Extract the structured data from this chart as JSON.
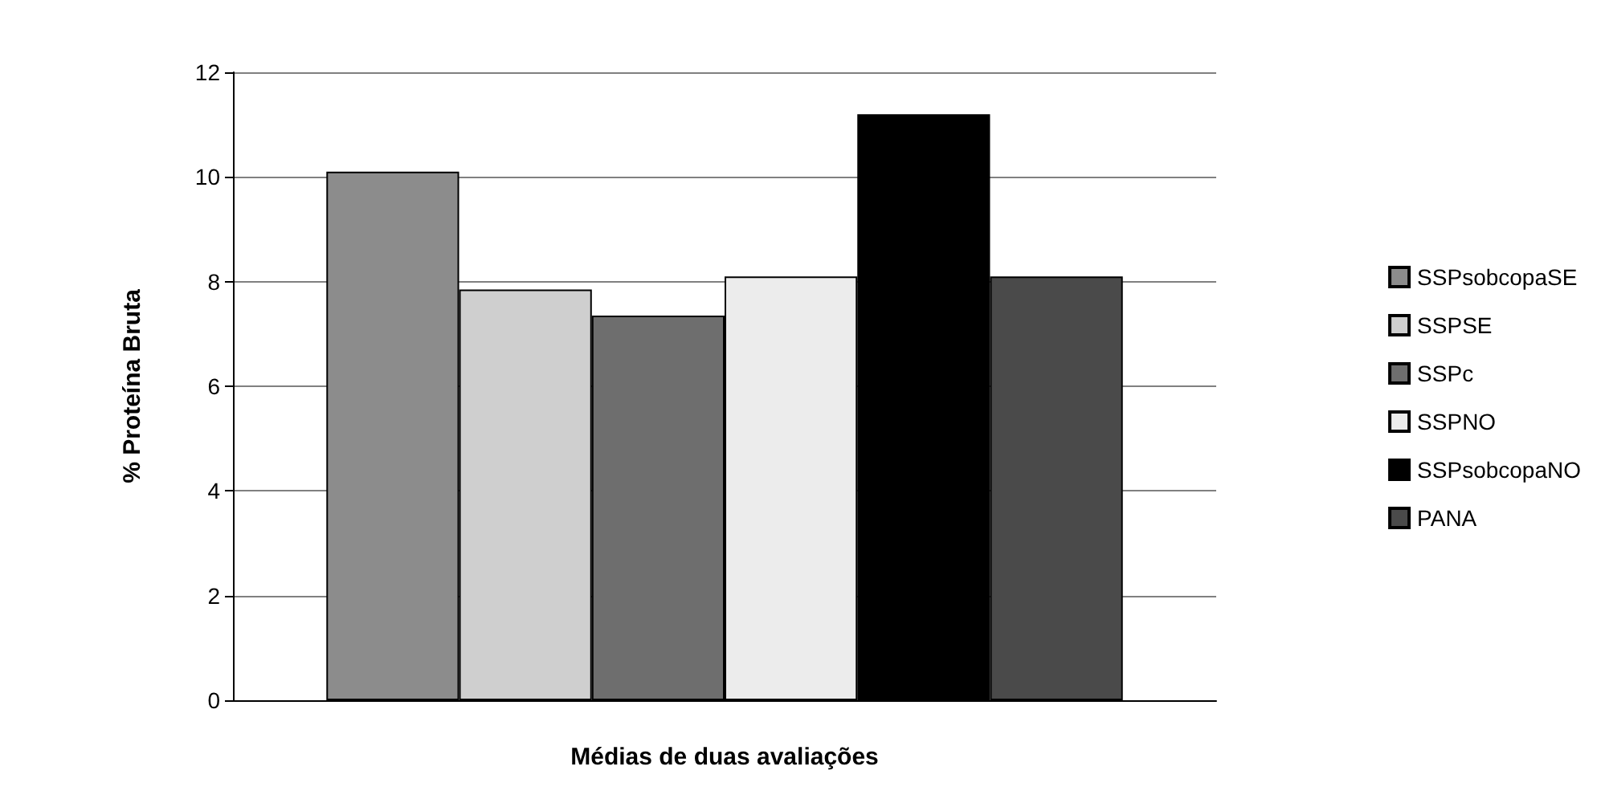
{
  "chart_data": {
    "type": "bar",
    "xlabel": "Médias de duas avaliações",
    "ylabel": "% Proteína Bruta",
    "categories": [
      null
    ],
    "series": [
      {
        "name": "SSPsobcopaSE",
        "color": "#8c8c8c",
        "values": [
          10.1
        ]
      },
      {
        "name": "SSPSE",
        "color": "#cfcfcf",
        "values": [
          7.85
        ]
      },
      {
        "name": "SSPc",
        "color": "#6e6e6e",
        "values": [
          7.35
        ]
      },
      {
        "name": "SSPNO",
        "color": "#ececec",
        "values": [
          8.1
        ]
      },
      {
        "name": "SSPsobcopaNO",
        "color": "#000000",
        "values": [
          11.2
        ]
      },
      {
        "name": "PANA",
        "color": "#4a4a4a",
        "values": [
          8.1
        ]
      }
    ],
    "ylim": [
      0,
      12
    ],
    "yticks": [
      0,
      2,
      4,
      6,
      8,
      10,
      12
    ],
    "grid": "y",
    "legend": "right"
  }
}
